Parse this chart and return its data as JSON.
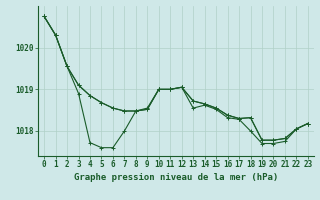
{
  "xlabel": "Graphe pression niveau de la mer (hPa)",
  "background_color": "#cfe8e8",
  "plot_background": "#cfe8e8",
  "grid_color_major": "#b0d0c8",
  "grid_color_minor": "#d8eae6",
  "line_color": "#1a5c2a",
  "xlim": [
    -0.5,
    23.5
  ],
  "ylim": [
    1017.4,
    1021.0
  ],
  "yticks": [
    1018,
    1019,
    1020
  ],
  "xticks": [
    0,
    1,
    2,
    3,
    4,
    5,
    6,
    7,
    8,
    9,
    10,
    11,
    12,
    13,
    14,
    15,
    16,
    17,
    18,
    19,
    20,
    21,
    22,
    23
  ],
  "series1": [
    1020.75,
    1020.3,
    null,
    null,
    null,
    null,
    null,
    null,
    null,
    null,
    null,
    null,
    null,
    null,
    null,
    null,
    null,
    null,
    null,
    null,
    null,
    null,
    null,
    null
  ],
  "series": [
    [
      1020.75,
      1020.3,
      1019.55,
      1019.1,
      1018.85,
      1018.68,
      1018.55,
      1018.48,
      1018.48,
      1018.52,
      1019.0,
      1019.0,
      1019.05,
      1018.72,
      1018.65,
      1018.55,
      1018.38,
      1018.3,
      1018.32,
      1017.78,
      1017.78,
      1017.82,
      1018.05,
      1018.18
    ],
    [
      1020.75,
      1020.3,
      1019.55,
      1019.1,
      1018.85,
      1018.68,
      1018.55,
      1018.48,
      1018.48,
      1018.52,
      1019.0,
      1019.0,
      1019.05,
      1018.72,
      1018.65,
      1018.55,
      1018.38,
      1018.3,
      1018.32,
      1017.78,
      1017.78,
      1017.82,
      1018.05,
      1018.18
    ],
    [
      1020.75,
      1020.3,
      1019.55,
      1018.9,
      1017.72,
      1017.6,
      1017.6,
      1018.0,
      1018.48,
      1018.55,
      1019.0,
      1019.0,
      1019.05,
      1018.55,
      1018.62,
      1018.52,
      1018.32,
      1018.28,
      1018.0,
      1017.7,
      1017.7,
      1017.75,
      1018.05,
      1018.18
    ]
  ],
  "marker": "+",
  "markersize": 3.5,
  "linewidth": 0.8,
  "xlabel_fontsize": 6.5,
  "tick_fontsize": 5.5
}
